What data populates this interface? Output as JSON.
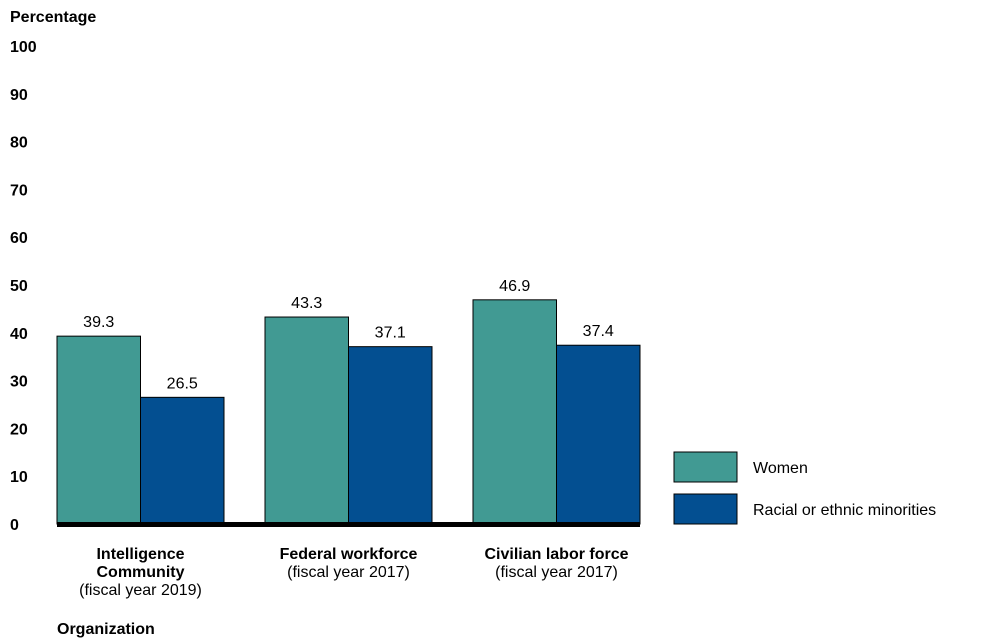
{
  "chart_data": {
    "type": "bar",
    "ylabel": "Percentage",
    "xlabel": "Organization",
    "ylim": [
      0,
      100
    ],
    "yticks": [
      0,
      10,
      20,
      30,
      40,
      50,
      60,
      70,
      80,
      90,
      100
    ],
    "grid": false,
    "legend_position": "bottom-right",
    "categories": [
      {
        "lines_bold": [
          "Intelligence",
          "Community"
        ],
        "lines_normal": [
          "(fiscal year 2019)"
        ]
      },
      {
        "lines_bold": [
          "Federal workforce"
        ],
        "lines_normal": [
          "(fiscal year 2017)"
        ]
      },
      {
        "lines_bold": [
          "Civilian labor force"
        ],
        "lines_normal": [
          "(fiscal year 2017)"
        ]
      }
    ],
    "series": [
      {
        "name": "Women",
        "color": "#419a93",
        "values": [
          39.3,
          43.3,
          46.9
        ]
      },
      {
        "name": "Racial or ethnic minorities",
        "color": "#034f91",
        "values": [
          26.5,
          37.1,
          37.4
        ]
      }
    ]
  }
}
